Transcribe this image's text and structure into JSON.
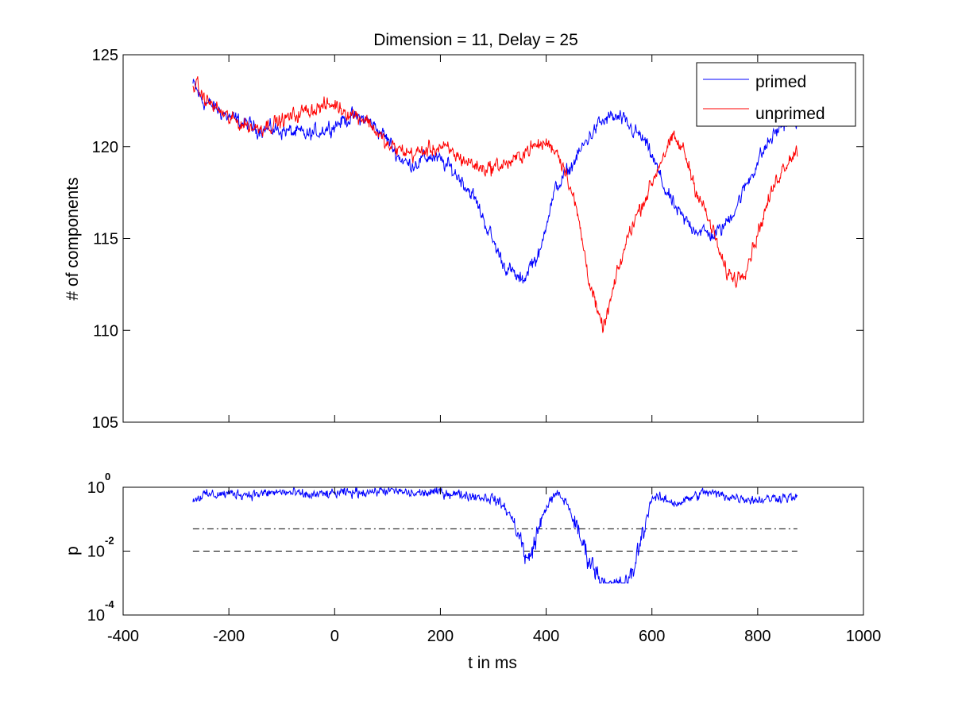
{
  "chart_data": [
    {
      "type": "line",
      "title": "Dimension  = 11, Delay = 25",
      "xlabel": "",
      "ylabel": "# of components",
      "xlim": [
        -400,
        1000
      ],
      "ylim": [
        105,
        125
      ],
      "yticks": [
        105,
        110,
        115,
        120,
        125
      ],
      "yticklabels": [
        "105",
        "110",
        "115",
        "120",
        "125"
      ],
      "grid": false,
      "legend": {
        "placement": "top-right",
        "entries": [
          "primed",
          "unprimed"
        ]
      },
      "noise_amplitude": 0.55,
      "series": [
        {
          "name": "primed",
          "color": "#0000ff",
          "x": [
            -268,
            -250,
            -220,
            -200,
            -150,
            -100,
            -50,
            0,
            30,
            60,
            80,
            100,
            120,
            140,
            160,
            180,
            200,
            220,
            240,
            260,
            280,
            300,
            320,
            340,
            355,
            370,
            390,
            400,
            420,
            440,
            460,
            480,
            500,
            520,
            540,
            560,
            580,
            600,
            620,
            640,
            660,
            680,
            700,
            720,
            740,
            760,
            780,
            800,
            820,
            840,
            860,
            875
          ],
          "y": [
            123.4,
            122.5,
            122.0,
            121.6,
            121.0,
            120.9,
            120.6,
            121.2,
            121.6,
            121.5,
            121.0,
            120.4,
            119.5,
            119.0,
            119.2,
            119.5,
            119.2,
            118.8,
            118.2,
            117.4,
            116.2,
            114.8,
            113.6,
            113.0,
            112.6,
            113.6,
            114.2,
            116.0,
            117.8,
            118.6,
            119.5,
            120.5,
            121.2,
            121.6,
            121.5,
            121.0,
            120.5,
            119.5,
            118.0,
            116.8,
            116.0,
            115.6,
            115.3,
            115.2,
            115.8,
            116.8,
            118.0,
            119.2,
            120.2,
            121.0,
            121.5,
            121.0
          ]
        },
        {
          "name": "unprimed",
          "color": "#ff0000",
          "x": [
            -268,
            -250,
            -220,
            -200,
            -150,
            -100,
            -50,
            0,
            30,
            60,
            80,
            100,
            150,
            200,
            250,
            280,
            300,
            340,
            360,
            380,
            400,
            420,
            440,
            460,
            480,
            490,
            500,
            510,
            520,
            540,
            560,
            580,
            600,
            620,
            640,
            660,
            680,
            700,
            720,
            730,
            740,
            760,
            780,
            800,
            820,
            840,
            860,
            875
          ],
          "y": [
            123.6,
            122.7,
            122.0,
            121.5,
            121.0,
            121.4,
            122.0,
            122.3,
            121.8,
            121.5,
            120.8,
            120.0,
            119.6,
            120.0,
            119.2,
            118.8,
            118.9,
            119.2,
            119.8,
            120.0,
            120.2,
            119.8,
            118.5,
            116.2,
            113.0,
            111.8,
            110.5,
            110.2,
            111.4,
            113.6,
            115.6,
            116.8,
            118.0,
            119.5,
            120.4,
            119.8,
            118.0,
            116.5,
            115.0,
            114.0,
            113.2,
            112.8,
            113.6,
            115.3,
            117.0,
            118.5,
            119.4,
            119.8
          ]
        }
      ]
    },
    {
      "type": "line",
      "title": "",
      "xlabel": "t in ms",
      "ylabel": "p",
      "xlim": [
        -400,
        1000
      ],
      "xticks": [
        -400,
        -200,
        0,
        200,
        400,
        600,
        800,
        1000
      ],
      "xticklabels": [
        "-400",
        "-200",
        "0",
        "200",
        "400",
        "600",
        "800",
        "1000"
      ],
      "yscale": "log",
      "ylim_exp": [
        -4,
        0
      ],
      "yticks": [
        {
          "base": "10",
          "exp": "0",
          "value_exp": 0
        },
        {
          "base": "10",
          "exp": "-2",
          "value_exp": -2
        },
        {
          "base": "10",
          "exp": "-4",
          "value_exp": -4
        }
      ],
      "grid": false,
      "noise_amplitude": 0.22,
      "clip_floor_exp": -3,
      "series": [
        {
          "name": "",
          "color": "#0000ff",
          "x": [
            -268,
            -250,
            -200,
            -150,
            -100,
            -50,
            0,
            50,
            100,
            150,
            200,
            250,
            300,
            320,
            340,
            355,
            365,
            380,
            400,
            420,
            440,
            460,
            480,
            500,
            520,
            540,
            560,
            580,
            600,
            650,
            700,
            750,
            800,
            850,
            875
          ],
          "y_log10": [
            -0.4,
            -0.25,
            -0.2,
            -0.22,
            -0.15,
            -0.25,
            -0.2,
            -0.15,
            -0.1,
            -0.2,
            -0.15,
            -0.25,
            -0.35,
            -0.6,
            -1.1,
            -1.8,
            -2.4,
            -1.6,
            -0.6,
            -0.2,
            -0.5,
            -1.4,
            -2.2,
            -2.8,
            -3.1,
            -3.1,
            -2.9,
            -1.6,
            -0.3,
            -0.5,
            -0.15,
            -0.3,
            -0.4,
            -0.3,
            -0.35
          ]
        }
      ],
      "reference_lines": [
        {
          "style": "dashdot",
          "color": "#000000",
          "y_log10": -1.3,
          "x": [
            -268,
            875
          ]
        },
        {
          "style": "dashed",
          "color": "#000000",
          "y_log10": -2.0,
          "x": [
            -268,
            875
          ]
        }
      ]
    }
  ]
}
